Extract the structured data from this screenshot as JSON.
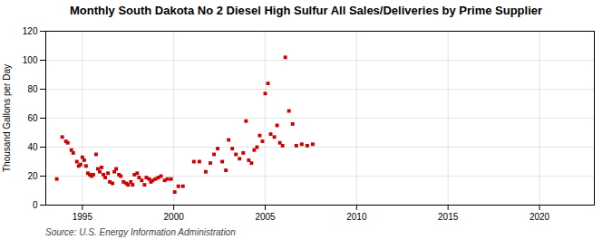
{
  "chart_data": {
    "type": "scatter",
    "title": "Monthly South Dakota No 2 Diesel High Sulfur All Sales/Deliveries by Prime Supplier",
    "ylabel": "Thousand Gallons per Day",
    "source": "Source: U.S. Energy Information Administration",
    "color": "#cc0000",
    "marker": "square",
    "grid": true,
    "xlim": [
      1993.0,
      2023.0
    ],
    "ylim": [
      0,
      120
    ],
    "xticks": [
      1995,
      2000,
      2005,
      2010,
      2015,
      2020
    ],
    "yticks": [
      0,
      20,
      40,
      60,
      80,
      100,
      120
    ],
    "x": [
      1993.6,
      1993.9,
      1994.1,
      1994.2,
      1994.4,
      1994.5,
      1994.7,
      1994.8,
      1994.9,
      1995.0,
      1995.1,
      1995.2,
      1995.3,
      1995.4,
      1995.5,
      1995.6,
      1995.75,
      1995.85,
      1995.95,
      1996.05,
      1996.15,
      1996.25,
      1996.4,
      1996.5,
      1996.65,
      1996.75,
      1996.85,
      1997.0,
      1997.1,
      1997.25,
      1997.4,
      1997.5,
      1997.65,
      1997.75,
      1997.85,
      1998.0,
      1998.1,
      1998.25,
      1998.4,
      1998.5,
      1998.65,
      1998.75,
      1998.85,
      1999.0,
      1999.15,
      1999.3,
      1999.5,
      1999.65,
      1999.85,
      2000.05,
      2000.25,
      2000.5,
      2001.1,
      2001.4,
      2001.75,
      2002.0,
      2002.2,
      2002.4,
      2002.65,
      2002.85,
      2003.0,
      2003.2,
      2003.4,
      2003.6,
      2003.8,
      2003.95,
      2004.1,
      2004.25,
      2004.4,
      2004.55,
      2004.7,
      2004.85,
      2005.0,
      2005.15,
      2005.3,
      2005.5,
      2005.65,
      2005.8,
      2005.95,
      2006.1,
      2006.3,
      2006.5,
      2006.7,
      2007.0,
      2007.3,
      2007.6
    ],
    "values": [
      18,
      47,
      44,
      43,
      38,
      36,
      30,
      27,
      28,
      33,
      31,
      27,
      22,
      21,
      20,
      21,
      35,
      25,
      23,
      26,
      21,
      19,
      22,
      16,
      15,
      23,
      25,
      21,
      20,
      16,
      15,
      14,
      16,
      14,
      21,
      22,
      19,
      17,
      14,
      19,
      18,
      16,
      17,
      18,
      19,
      20,
      17,
      18,
      18,
      9,
      13,
      13,
      30,
      30,
      23,
      29,
      35,
      39,
      30,
      24,
      45,
      39,
      35,
      32,
      36,
      58,
      31,
      29,
      38,
      40,
      48,
      44,
      77,
      84,
      49,
      47,
      55,
      43,
      41,
      102,
      65,
      56,
      41,
      42,
      41,
      42
    ]
  }
}
